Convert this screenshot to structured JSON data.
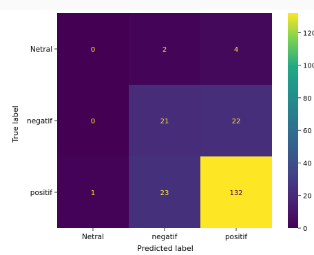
{
  "chart_data": {
    "type": "heatmap",
    "title": "",
    "xlabel": "Predicted label",
    "ylabel": "True label",
    "x_categories": [
      "Netral",
      "negatif",
      "positif"
    ],
    "y_categories": [
      "Netral",
      "negatif",
      "positif"
    ],
    "values": [
      [
        0,
        2,
        4
      ],
      [
        0,
        21,
        22
      ],
      [
        1,
        23,
        132
      ]
    ],
    "colorbar": {
      "ticks": [
        0,
        20,
        40,
        60,
        80,
        100,
        120
      ],
      "range": [
        0,
        132
      ]
    },
    "colormap": "viridis",
    "cell_text_color_dark": "#fde725",
    "cell_text_color_light": "#440154"
  }
}
